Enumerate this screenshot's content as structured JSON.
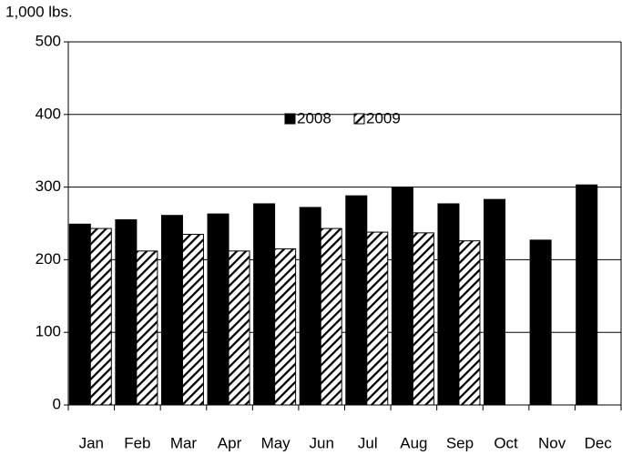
{
  "chart_data": {
    "type": "bar",
    "y_label": "1,000 lbs.",
    "categories": [
      "Jan",
      "Feb",
      "Mar",
      "Apr",
      "May",
      "Jun",
      "Jul",
      "Aug",
      "Sep",
      "Oct",
      "Nov",
      "Dec"
    ],
    "series": [
      {
        "name": "2008",
        "color": "#000000",
        "values": [
          249,
          255,
          261,
          263,
          277,
          272,
          288,
          300,
          277,
          283,
          227,
          303
        ]
      },
      {
        "name": "2009",
        "color": "#000000",
        "hatch": true,
        "values": [
          243,
          212,
          235,
          212,
          215,
          243,
          238,
          237,
          226,
          null,
          null,
          null
        ]
      }
    ],
    "ylim": [
      0,
      500
    ],
    "yticks": [
      0,
      100,
      200,
      300,
      400,
      500
    ],
    "grid": true
  }
}
